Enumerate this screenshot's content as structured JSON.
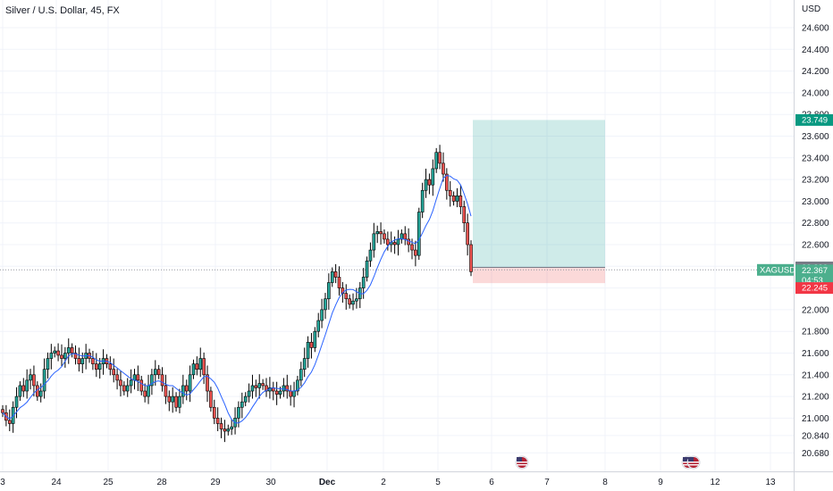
{
  "header": {
    "title": "Silver / U.S. Dollar, 45, FX"
  },
  "price_axis": {
    "currency": "USD",
    "ticks": [
      "24.600",
      "24.400",
      "24.200",
      "24.000",
      "23.800",
      "23.600",
      "23.400",
      "23.200",
      "23.000",
      "22.800",
      "22.600",
      "22.400",
      "22.200",
      "22.000",
      "21.800",
      "21.600",
      "21.400",
      "21.200",
      "21.000",
      "20.840",
      "20.680"
    ],
    "target_label": "23.749",
    "entry_label": "22.390",
    "stop_label": "22.245",
    "current_symbol": "XAGUSD",
    "current_price": "22.367",
    "countdown": "04:53"
  },
  "time_axis": {
    "labels": [
      "3",
      "24",
      "25",
      "28",
      "29",
      "30",
      "Dec",
      "2",
      "5",
      "6",
      "7",
      "8",
      "9",
      "12",
      "13"
    ]
  },
  "events": {
    "icon_names": [
      "us-flag-icon",
      "us-flag-icon"
    ]
  },
  "colors": {
    "bull": "#26a69a",
    "bear": "#ef5350",
    "candle": "#000000",
    "ma": "#2962ff",
    "target_zone": "rgba(38,166,154,0.22)",
    "stop_zone": "rgba(239,83,80,0.22)",
    "grid": "#f0f3fa"
  },
  "chart_data": {
    "type": "candlestick",
    "symbol": "XAGUSD",
    "timeframe": "45",
    "ylim": [
      20.6,
      24.75
    ],
    "close_series": [
      21.05,
      20.98,
      20.95,
      21.1,
      21.2,
      21.3,
      21.25,
      21.35,
      21.4,
      21.3,
      21.2,
      21.25,
      21.45,
      21.55,
      21.6,
      21.62,
      21.58,
      21.55,
      21.6,
      21.65,
      21.6,
      21.55,
      21.5,
      21.55,
      21.6,
      21.55,
      21.5,
      21.45,
      21.5,
      21.55,
      21.5,
      21.45,
      21.4,
      21.35,
      21.3,
      21.25,
      21.3,
      21.35,
      21.4,
      21.35,
      21.25,
      21.2,
      21.3,
      21.4,
      21.45,
      21.4,
      21.3,
      21.2,
      21.15,
      21.2,
      21.1,
      21.2,
      21.3,
      21.25,
      21.4,
      21.5,
      21.45,
      21.55,
      21.4,
      21.25,
      21.1,
      21.0,
      20.95,
      20.9,
      20.88,
      20.9,
      20.92,
      21.0,
      21.1,
      21.15,
      21.2,
      21.25,
      21.3,
      21.28,
      21.32,
      21.3,
      21.25,
      21.28,
      21.25,
      21.22,
      21.25,
      21.3,
      21.25,
      21.2,
      21.25,
      21.35,
      21.45,
      21.55,
      21.7,
      21.65,
      21.8,
      21.9,
      22.0,
      22.1,
      22.25,
      22.35,
      22.3,
      22.2,
      22.15,
      22.1,
      22.05,
      22.08,
      22.1,
      22.2,
      22.3,
      22.45,
      22.55,
      22.7,
      22.72,
      22.7,
      22.65,
      22.6,
      22.62,
      22.6,
      22.65,
      22.7,
      22.65,
      22.6,
      22.55,
      22.5,
      22.9,
      23.1,
      23.2,
      23.15,
      23.3,
      23.45,
      23.35,
      23.25,
      23.1,
      23.05,
      23.0,
      23.05,
      22.95,
      22.8,
      22.6,
      22.35
    ],
    "current_price": 22.367,
    "position": {
      "target": 23.749,
      "entry": 22.39,
      "stop": 22.245
    }
  }
}
